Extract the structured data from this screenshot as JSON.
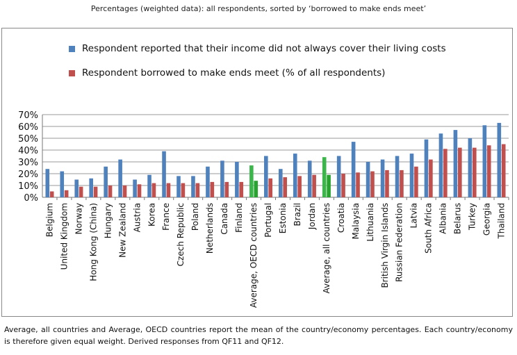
{
  "header": {
    "title": "Percentages (weighted data): all respondents, sorted by ‘borrowed to make ends meet’"
  },
  "footnote": "Average, all countries and Average, OECD countries report the mean of the country/economy percentages. Each country/economy is therefore given equal weight. Derived responses from QF11 and QF12.",
  "colors": {
    "income": "#4f81bd",
    "borrowed": "#c0504d",
    "average_income": "#3cb54a",
    "average_borrowed": "#29a32f"
  },
  "chart_data": {
    "type": "bar",
    "title": "",
    "xlabel": "",
    "ylabel": "",
    "ylim": [
      0,
      70
    ],
    "yticks": [
      0,
      10,
      20,
      30,
      40,
      50,
      60,
      70
    ],
    "ytick_labels": [
      "0%",
      "10%",
      "20%",
      "30%",
      "40%",
      "50%",
      "60%",
      "70%"
    ],
    "grid": true,
    "legend_placement": "top-left",
    "categories": [
      "Belgium",
      "United Kingdom",
      "Norway",
      "Hong Kong (China)",
      "Hungary",
      "New Zealand",
      "Austria",
      "Korea",
      "France",
      "Czech Republic",
      "Poland",
      "Netherlands",
      "Canada",
      "Finland",
      "Average, OECD countries",
      "Portugal",
      "Estonia",
      "Brazil",
      "Jordan",
      "Average, all countries",
      "Croatia",
      "Malaysia",
      "Lithuania",
      "British Virgin Islands",
      "Russian Federation",
      "Latvia",
      "South Africa",
      "Albania",
      "Belarus",
      "Turkey",
      "Georgia",
      "Thailand"
    ],
    "highlight_categories": [
      "Average, OECD countries",
      "Average, all countries"
    ],
    "series": [
      {
        "name": "Respondent reported that their income did not always cover their living costs",
        "values": [
          24,
          22,
          15,
          16,
          26,
          32,
          15,
          19,
          39,
          18,
          18,
          26,
          31,
          30,
          27,
          35,
          24,
          37,
          31,
          34,
          35,
          47,
          30,
          32,
          35,
          37,
          49,
          54,
          57,
          50,
          61,
          63
        ]
      },
      {
        "name": "Respondent borrowed to make ends meet (% of all respondents)",
        "values": [
          5,
          6,
          9,
          9,
          10,
          10,
          11,
          12,
          12,
          12,
          12,
          13,
          13,
          13,
          14,
          16,
          17,
          18,
          19,
          19,
          20,
          21,
          22,
          23,
          23,
          26,
          32,
          41,
          42,
          42,
          44,
          45
        ]
      }
    ]
  }
}
